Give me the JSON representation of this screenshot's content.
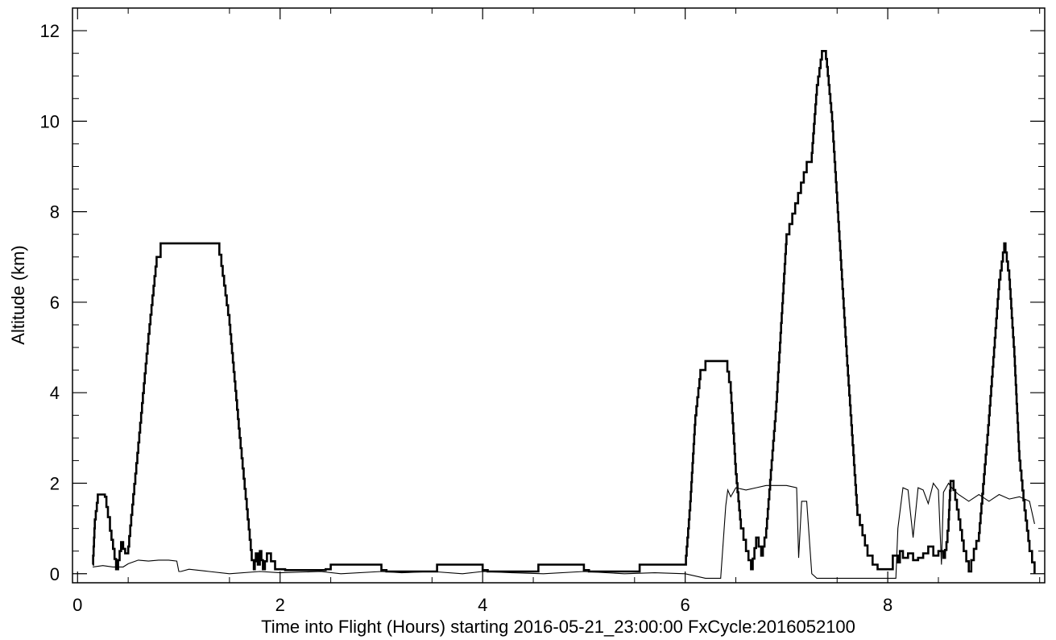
{
  "chart_data": {
    "type": "line",
    "xlabel": "Time into Flight (Hours) starting 2016-05-21_23:00:00  FxCycle:2016052100",
    "ylabel": "Altitude (km)",
    "xlim": [
      -0.05,
      9.55
    ],
    "ylim": [
      -0.2,
      12.5
    ],
    "x_ticks": [
      0,
      2,
      4,
      6,
      8
    ],
    "y_ticks": [
      0,
      2,
      4,
      6,
      8,
      10,
      12
    ],
    "grid": false,
    "colors": {
      "line": "#000000",
      "axes": "#000000",
      "background": "#ffffff"
    },
    "series": [
      {
        "style": "thick-stepped",
        "x": [
          0.15,
          0.17,
          0.2,
          0.22,
          0.27,
          0.3,
          0.32,
          0.35,
          0.38,
          0.4,
          0.43,
          0.45,
          0.47,
          0.5,
          0.53,
          0.6,
          0.7,
          0.78,
          0.82,
          1.0,
          1.2,
          1.38,
          1.42,
          1.5,
          1.6,
          1.68,
          1.72,
          1.74,
          1.76,
          1.78,
          1.8,
          1.83,
          1.87,
          1.95,
          2.05,
          2.4,
          2.45,
          2.5,
          2.95,
          3.0,
          3.05,
          3.45,
          3.5,
          3.55,
          3.95,
          4.0,
          4.05,
          4.45,
          4.5,
          4.55,
          4.95,
          5.0,
          5.05,
          5.45,
          5.5,
          5.55,
          5.95,
          6.0,
          6.05,
          6.1,
          6.15,
          6.2,
          6.25,
          6.4,
          6.45,
          6.5,
          6.55,
          6.6,
          6.65,
          6.7,
          6.75,
          6.8,
          6.9,
          7.0,
          7.2,
          7.25,
          7.3,
          7.35,
          7.38,
          7.4,
          7.45,
          7.5,
          7.6,
          7.7,
          7.8,
          7.85,
          7.9,
          8.0,
          8.05,
          8.1,
          8.12,
          8.15,
          8.2,
          8.25,
          8.3,
          8.35,
          8.4,
          8.45,
          8.5,
          8.55,
          8.58,
          8.6,
          8.62,
          8.65,
          8.7,
          8.75,
          8.8,
          8.85,
          8.9,
          9.0,
          9.1,
          9.15,
          9.2,
          9.25,
          9.3,
          9.35,
          9.4,
          9.45
        ],
        "y": [
          0.2,
          1.2,
          1.75,
          1.75,
          1.7,
          1.25,
          0.95,
          0.55,
          0.1,
          0.3,
          0.7,
          0.55,
          0.45,
          0.6,
          1.3,
          2.9,
          5.3,
          7.0,
          7.3,
          7.3,
          7.3,
          7.3,
          6.8,
          5.5,
          3.0,
          1.2,
          0.3,
          0.1,
          0.45,
          0.2,
          0.5,
          0.1,
          0.45,
          0.1,
          0.08,
          0.08,
          0.1,
          0.2,
          0.2,
          0.08,
          0.05,
          0.05,
          0.05,
          0.2,
          0.2,
          0.08,
          0.05,
          0.05,
          0.05,
          0.2,
          0.2,
          0.08,
          0.05,
          0.05,
          0.05,
          0.2,
          0.2,
          0.2,
          1.6,
          3.5,
          4.5,
          4.7,
          4.7,
          4.7,
          4.0,
          2.2,
          1.0,
          0.5,
          0.1,
          0.8,
          0.4,
          1.0,
          3.8,
          7.5,
          9.1,
          9.3,
          10.8,
          11.55,
          11.55,
          11.2,
          10.0,
          8.2,
          4.6,
          1.3,
          0.4,
          0.2,
          0.1,
          0.1,
          0.4,
          0.25,
          0.5,
          0.35,
          0.45,
          0.3,
          0.35,
          0.45,
          0.6,
          0.4,
          0.5,
          0.35,
          0.7,
          1.2,
          2.05,
          1.85,
          1.2,
          0.5,
          0.05,
          0.55,
          0.9,
          3.5,
          6.5,
          7.3,
          6.5,
          4.8,
          2.5,
          1.4,
          0.5,
          0.0
        ]
      },
      {
        "style": "thin",
        "x": [
          0.15,
          0.25,
          0.35,
          0.45,
          0.5,
          0.6,
          0.7,
          0.8,
          0.9,
          0.98,
          1.0,
          1.02,
          1.1,
          1.3,
          1.5,
          1.8,
          2.0,
          2.4,
          2.6,
          3.0,
          3.2,
          3.5,
          3.8,
          4.0,
          4.3,
          4.6,
          5.0,
          5.4,
          5.7,
          6.0,
          6.2,
          6.35,
          6.4,
          6.42,
          6.45,
          6.5,
          6.6,
          6.7,
          6.8,
          7.0,
          7.1,
          7.12,
          7.15,
          7.2,
          7.25,
          7.3,
          7.4,
          7.8,
          8.08,
          8.1,
          8.15,
          8.2,
          8.25,
          8.3,
          8.35,
          8.4,
          8.45,
          8.5,
          8.53,
          8.55,
          8.6,
          8.65,
          8.7,
          8.8,
          8.9,
          9.0,
          9.1,
          9.2,
          9.3,
          9.4,
          9.45
        ],
        "y": [
          0.15,
          0.18,
          0.15,
          0.15,
          0.22,
          0.3,
          0.28,
          0.3,
          0.3,
          0.28,
          0.05,
          0.05,
          0.1,
          0.05,
          0.0,
          0.05,
          0.02,
          0.05,
          0.0,
          0.05,
          0.02,
          0.05,
          0.0,
          0.05,
          0.02,
          0.0,
          0.05,
          0.0,
          0.02,
          0.0,
          -0.1,
          -0.1,
          1.5,
          1.85,
          1.7,
          1.9,
          1.85,
          1.9,
          1.95,
          1.95,
          1.9,
          0.35,
          1.6,
          1.6,
          0.0,
          -0.1,
          -0.1,
          -0.1,
          -0.1,
          1.0,
          1.9,
          1.85,
          0.8,
          1.9,
          1.85,
          1.55,
          2.0,
          1.85,
          0.2,
          1.8,
          2.0,
          1.85,
          1.75,
          1.6,
          1.75,
          1.6,
          1.75,
          1.65,
          1.7,
          1.6,
          1.1
        ]
      }
    ]
  }
}
